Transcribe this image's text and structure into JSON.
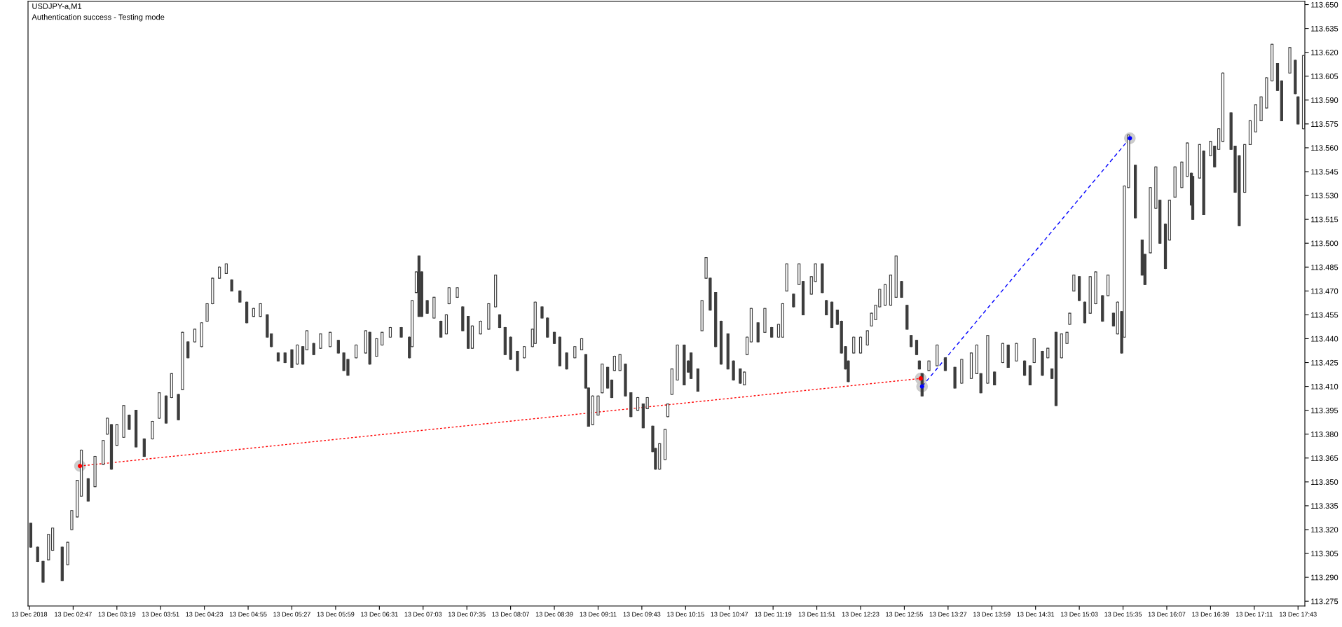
{
  "chart_data": {
    "type": "candlestick",
    "title": "USDJPY-a,M1",
    "annotations": [
      "Authentication success - Testing mode"
    ],
    "color": "#3c3c3c",
    "xlim": [
      "2018-12-13T02:14",
      "2018-12-13T17:48"
    ],
    "ylim": [
      113.272,
      113.652
    ],
    "xticks": [
      {
        "value": "2018-12-13T02:15",
        "label": "13 Dec 2018"
      },
      {
        "value": "2018-12-13T02:47",
        "label": "13 Dec 02:47"
      },
      {
        "value": "2018-12-13T03:19",
        "label": "13 Dec 03:19"
      },
      {
        "value": "2018-12-13T03:51",
        "label": "13 Dec 03:51"
      },
      {
        "value": "2018-12-13T04:23",
        "label": "13 Dec 04:23"
      },
      {
        "value": "2018-12-13T04:55",
        "label": "13 Dec 04:55"
      },
      {
        "value": "2018-12-13T05:27",
        "label": "13 Dec 05:27"
      },
      {
        "value": "2018-12-13T05:59",
        "label": "13 Dec 05:59"
      },
      {
        "value": "2018-12-13T06:31",
        "label": "13 Dec 06:31"
      },
      {
        "value": "2018-12-13T07:03",
        "label": "13 Dec 07:03"
      },
      {
        "value": "2018-12-13T07:35",
        "label": "13 Dec 07:35"
      },
      {
        "value": "2018-12-13T08:07",
        "label": "13 Dec 08:07"
      },
      {
        "value": "2018-12-13T08:39",
        "label": "13 Dec 08:39"
      },
      {
        "value": "2018-12-13T09:11",
        "label": "13 Dec 09:11"
      },
      {
        "value": "2018-12-13T09:43",
        "label": "13 Dec 09:43"
      },
      {
        "value": "2018-12-13T10:15",
        "label": "13 Dec 10:15"
      },
      {
        "value": "2018-12-13T10:47",
        "label": "13 Dec 10:47"
      },
      {
        "value": "2018-12-13T11:19",
        "label": "13 Dec 11:19"
      },
      {
        "value": "2018-12-13T11:51",
        "label": "13 Dec 11:51"
      },
      {
        "value": "2018-12-13T12:23",
        "label": "13 Dec 12:23"
      },
      {
        "value": "2018-12-13T12:55",
        "label": "13 Dec 12:55"
      },
      {
        "value": "2018-12-13T13:27",
        "label": "13 Dec 13:27"
      },
      {
        "value": "2018-12-13T13:59",
        "label": "13 Dec 13:59"
      },
      {
        "value": "2018-12-13T14:31",
        "label": "13 Dec 14:31"
      },
      {
        "value": "2018-12-13T15:03",
        "label": "13 Dec 15:03"
      },
      {
        "value": "2018-12-13T15:35",
        "label": "13 Dec 15:35"
      },
      {
        "value": "2018-12-13T16:07",
        "label": "13 Dec 16:07"
      },
      {
        "value": "2018-12-13T16:39",
        "label": "13 Dec 16:39"
      },
      {
        "value": "2018-12-13T17:11",
        "label": "13 Dec 17:11"
      },
      {
        "value": "2018-12-13T17:43",
        "label": "13 Dec 17:43"
      }
    ],
    "yticks": [
      113.275,
      {
        "value": 113.29,
        "label": "113.290"
      },
      113.305,
      {
        "value": 113.32,
        "label": "113.320"
      },
      113.335,
      {
        "value": 113.35,
        "label": "113.350"
      },
      113.365,
      {
        "value": 113.38,
        "label": "113.380"
      },
      113.395,
      {
        "value": 113.41,
        "label": "113.410"
      },
      113.425,
      {
        "value": 113.44,
        "label": "113.440"
      },
      113.455,
      {
        "value": 113.47,
        "label": "113.470"
      },
      113.485,
      {
        "value": 113.5,
        "label": "113.500"
      },
      113.515,
      {
        "value": 113.53,
        "label": "113.530"
      },
      113.545,
      {
        "value": 113.56,
        "label": "113.560"
      },
      113.575,
      {
        "value": 113.59,
        "label": "113.590"
      },
      113.605,
      {
        "value": 113.62,
        "label": "113.620"
      },
      113.635,
      {
        "value": 113.65,
        "label": "113.650"
      }
    ],
    "x": [
      "2018-12-13T02:16",
      "2018-12-13T02:21",
      "2018-12-13T02:25",
      "2018-12-13T02:29",
      "2018-12-13T02:32",
      "2018-12-13T02:39",
      "2018-12-13T02:43",
      "2018-12-13T02:46",
      "2018-12-13T02:50",
      "2018-12-13T02:53",
      "2018-12-13T02:58",
      "2018-12-13T03:03",
      "2018-12-13T03:09",
      "2018-12-13T03:12",
      "2018-12-13T03:15",
      "2018-12-13T03:19",
      "2018-12-13T03:24",
      "2018-12-13T03:28",
      "2018-12-13T03:33",
      "2018-12-13T03:39",
      "2018-12-13T03:45",
      "2018-12-13T03:50",
      "2018-12-13T03:55",
      "2018-12-13T03:59",
      "2018-12-13T04:04",
      "2018-12-13T04:07",
      "2018-12-13T04:11",
      "2018-12-13T04:16",
      "2018-12-13T04:21",
      "2018-12-13T04:25",
      "2018-12-13T04:29",
      "2018-12-13T04:34",
      "2018-12-13T04:39",
      "2018-12-13T04:43",
      "2018-12-13T04:49",
      "2018-12-13T04:54",
      "2018-12-13T04:59",
      "2018-12-13T05:04",
      "2018-12-13T05:09",
      "2018-12-13T05:12",
      "2018-12-13T05:17",
      "2018-12-13T05:22",
      "2018-12-13T05:27",
      "2018-12-13T05:31",
      "2018-12-13T05:35",
      "2018-12-13T05:38",
      "2018-12-13T05:43",
      "2018-12-13T05:48",
      "2018-12-13T05:55",
      "2018-12-13T06:01",
      "2018-12-13T06:05",
      "2018-12-13T06:08",
      "2018-12-13T06:14",
      "2018-12-13T06:21",
      "2018-12-13T06:24",
      "2018-12-13T06:29",
      "2018-12-13T06:33",
      "2018-12-13T06:39",
      "2018-12-13T06:47",
      "2018-12-13T06:53",
      "2018-12-13T06:55",
      "2018-12-13T06:58",
      "2018-12-13T07:00",
      "2018-12-13T07:02",
      "2018-12-13T07:06",
      "2018-12-13T07:11",
      "2018-12-13T07:16",
      "2018-12-13T07:20",
      "2018-12-13T07:22",
      "2018-12-13T07:28",
      "2018-12-13T07:32",
      "2018-12-13T07:36",
      "2018-12-13T07:39",
      "2018-12-13T07:45",
      "2018-12-13T07:51",
      "2018-12-13T07:56",
      "2018-12-13T07:59",
      "2018-12-13T08:03",
      "2018-12-13T08:07",
      "2018-12-13T08:12",
      "2018-12-13T08:17",
      "2018-12-13T08:23",
      "2018-12-13T08:25",
      "2018-12-13T08:30",
      "2018-12-13T08:34",
      "2018-12-13T08:39",
      "2018-12-13T08:43",
      "2018-12-13T08:48",
      "2018-12-13T08:54",
      "2018-12-13T08:59",
      "2018-12-13T09:02",
      "2018-12-13T09:04",
      "2018-12-13T09:07",
      "2018-12-13T09:11",
      "2018-12-13T09:14",
      "2018-12-13T09:18",
      "2018-12-13T09:21",
      "2018-12-13T09:23",
      "2018-12-13T09:27",
      "2018-12-13T09:31",
      "2018-12-13T09:35",
      "2018-12-13T09:40",
      "2018-12-13T09:44",
      "2018-12-13T09:47",
      "2018-12-13T09:51",
      "2018-12-13T09:53",
      "2018-12-13T09:56",
      "2018-12-13T10:00",
      "2018-12-13T10:02",
      "2018-12-13T10:05",
      "2018-12-13T10:09",
      "2018-12-13T10:14",
      "2018-12-13T10:17",
      "2018-12-13T10:19",
      "2018-12-13T10:24",
      "2018-12-13T10:27",
      "2018-12-13T10:30",
      "2018-12-13T10:33",
      "2018-12-13T10:37",
      "2018-12-13T10:41",
      "2018-12-13T10:46",
      "2018-12-13T10:50",
      "2018-12-13T10:55",
      "2018-12-13T10:58",
      "2018-12-13T11:00",
      "2018-12-13T11:03",
      "2018-12-13T11:08",
      "2018-12-13T11:13",
      "2018-12-13T11:18",
      "2018-12-13T11:23",
      "2018-12-13T11:26",
      "2018-12-13T11:29",
      "2018-12-13T11:34",
      "2018-12-13T11:38",
      "2018-12-13T11:41",
      "2018-12-13T11:47",
      "2018-12-13T11:50",
      "2018-12-13T11:55",
      "2018-12-13T11:58",
      "2018-12-13T12:02",
      "2018-12-13T12:06",
      "2018-12-13T12:09",
      "2018-12-13T12:12",
      "2018-12-13T12:14",
      "2018-12-13T12:18",
      "2018-12-13T12:23",
      "2018-12-13T12:28",
      "2018-12-13T12:31",
      "2018-12-13T12:34",
      "2018-12-13T12:37",
      "2018-12-13T12:41",
      "2018-12-13T12:45",
      "2018-12-13T12:49",
      "2018-12-13T12:53",
      "2018-12-13T12:57",
      "2018-12-13T13:00",
      "2018-12-13T13:04",
      "2018-12-13T13:06",
      "2018-12-13T13:08",
      "2018-12-13T13:13",
      "2018-12-13T13:19",
      "2018-12-13T13:25",
      "2018-12-13T13:32",
      "2018-12-13T13:37",
      "2018-12-13T13:44",
      "2018-12-13T13:48",
      "2018-12-13T13:51",
      "2018-12-13T13:56",
      "2018-12-13T14:01",
      "2018-12-13T14:07",
      "2018-12-13T14:11",
      "2018-12-13T14:17",
      "2018-12-13T14:23",
      "2018-12-13T14:27",
      "2018-12-13T14:30",
      "2018-12-13T14:36",
      "2018-12-13T14:40",
      "2018-12-13T14:43",
      "2018-12-13T14:46",
      "2018-12-13T14:50",
      "2018-12-13T14:54",
      "2018-12-13T14:56",
      "2018-12-13T14:59",
      "2018-12-13T15:03",
      "2018-12-13T15:07",
      "2018-12-13T15:11",
      "2018-12-13T15:15",
      "2018-12-13T15:20",
      "2018-12-13T15:24",
      "2018-12-13T15:28",
      "2018-12-13T15:31",
      "2018-12-13T15:34",
      "2018-12-13T15:36",
      "2018-12-13T15:39",
      "2018-12-13T15:44",
      "2018-12-13T15:49",
      "2018-12-13T15:51",
      "2018-12-13T15:55",
      "2018-12-13T15:59",
      "2018-12-13T16:02",
      "2018-12-13T16:06",
      "2018-12-13T16:09",
      "2018-12-13T16:13",
      "2018-12-13T16:18",
      "2018-12-13T16:22",
      "2018-12-13T16:25",
      "2018-12-13T16:26",
      "2018-12-13T16:31",
      "2018-12-13T16:34",
      "2018-12-13T16:39",
      "2018-12-13T16:42",
      "2018-12-13T16:45",
      "2018-12-13T16:48",
      "2018-12-13T16:54",
      "2018-12-13T16:57",
      "2018-12-13T17:00",
      "2018-12-13T17:04",
      "2018-12-13T17:08",
      "2018-12-13T17:12",
      "2018-12-13T17:16",
      "2018-12-13T17:20",
      "2018-12-13T17:24",
      "2018-12-13T17:28",
      "2018-12-13T17:31",
      "2018-12-13T17:37",
      "2018-12-13T17:41",
      "2018-12-13T17:43",
      "2018-12-13T17:47"
    ],
    "ohlc": [
      [
        113.324,
        113.324,
        113.309,
        113.309
      ],
      [
        113.309,
        113.309,
        113.3,
        113.3
      ],
      [
        113.3,
        113.3,
        113.287,
        113.287
      ],
      [
        113.301,
        113.317,
        113.301,
        113.317
      ],
      [
        113.307,
        113.321,
        113.307,
        113.321
      ],
      [
        113.309,
        113.309,
        113.288,
        113.288
      ],
      [
        113.298,
        113.312,
        113.298,
        113.312
      ],
      [
        113.32,
        113.332,
        113.32,
        113.332
      ],
      [
        113.328,
        113.351,
        113.328,
        113.351
      ],
      [
        113.341,
        113.37,
        113.341,
        113.37
      ],
      [
        113.352,
        113.352,
        113.338,
        113.338
      ],
      [
        113.347,
        113.366,
        113.347,
        113.366
      ],
      [
        113.361,
        113.376,
        113.361,
        113.376
      ],
      [
        113.38,
        113.39,
        113.38,
        113.39
      ],
      [
        113.386,
        113.386,
        113.358,
        113.358
      ],
      [
        113.373,
        113.386,
        113.373,
        113.386
      ],
      [
        113.378,
        113.398,
        113.378,
        113.398
      ],
      [
        113.392,
        113.392,
        113.383,
        113.383
      ],
      [
        113.395,
        113.395,
        113.372,
        113.372
      ],
      [
        113.377,
        113.377,
        113.366,
        113.366
      ],
      [
        113.377,
        113.388,
        113.377,
        113.388
      ],
      [
        113.39,
        113.406,
        113.39,
        113.406
      ],
      [
        113.404,
        113.404,
        113.387,
        113.387
      ],
      [
        113.403,
        113.418,
        113.403,
        113.418
      ],
      [
        113.405,
        113.405,
        113.389,
        113.389
      ],
      [
        113.408,
        113.444,
        113.408,
        113.444
      ],
      [
        113.438,
        113.438,
        113.428,
        113.428
      ],
      [
        113.438,
        113.446,
        113.438,
        113.446
      ],
      [
        113.435,
        113.45,
        113.435,
        113.45
      ],
      [
        113.451,
        113.462,
        113.451,
        113.462
      ],
      [
        113.462,
        113.478,
        113.462,
        113.478
      ],
      [
        113.478,
        113.485,
        113.478,
        113.485
      ],
      [
        113.481,
        113.487,
        113.481,
        113.487
      ],
      [
        113.477,
        113.477,
        113.47,
        113.47
      ],
      [
        113.47,
        113.47,
        113.463,
        113.463
      ],
      [
        113.463,
        113.463,
        113.45,
        113.45
      ],
      [
        113.454,
        113.459,
        113.454,
        113.459
      ],
      [
        113.454,
        113.462,
        113.454,
        113.462
      ],
      [
        113.455,
        113.455,
        113.441,
        113.441
      ],
      [
        113.443,
        113.443,
        113.435,
        113.435
      ],
      [
        113.431,
        113.431,
        113.426,
        113.426
      ],
      [
        113.431,
        113.431,
        113.425,
        113.425
      ],
      [
        113.433,
        113.433,
        113.422,
        113.422
      ],
      [
        113.424,
        113.436,
        113.424,
        113.436
      ],
      [
        113.435,
        113.435,
        113.424,
        113.424
      ],
      [
        113.433,
        113.445,
        113.433,
        113.445
      ],
      [
        113.437,
        113.437,
        113.43,
        113.43
      ],
      [
        113.434,
        113.443,
        113.434,
        113.443
      ],
      [
        113.435,
        113.444,
        113.435,
        113.444
      ],
      [
        113.439,
        113.439,
        113.431,
        113.431
      ],
      [
        113.431,
        113.431,
        113.42,
        113.42
      ],
      [
        113.427,
        113.427,
        113.417,
        113.417
      ],
      [
        113.428,
        113.436,
        113.428,
        113.436
      ],
      [
        113.431,
        113.445,
        113.431,
        113.445
      ],
      [
        113.444,
        113.444,
        113.424,
        113.424
      ],
      [
        113.429,
        113.44,
        113.429,
        113.44
      ],
      [
        113.436,
        113.444,
        113.436,
        113.444
      ],
      [
        113.441,
        113.447,
        113.441,
        113.447
      ],
      [
        113.447,
        113.447,
        113.441,
        113.441
      ],
      [
        113.441,
        113.441,
        113.428,
        113.428
      ],
      [
        113.435,
        113.464,
        113.435,
        113.464
      ],
      [
        113.469,
        113.482,
        113.469,
        113.482
      ],
      [
        113.492,
        113.492,
        113.454,
        113.454
      ],
      [
        113.482,
        113.482,
        113.454,
        113.454
      ],
      [
        113.464,
        113.464,
        113.456,
        113.456
      ],
      [
        113.453,
        113.466,
        113.453,
        113.466
      ],
      [
        113.451,
        113.451,
        113.441,
        113.441
      ],
      [
        113.443,
        113.455,
        113.443,
        113.455
      ],
      [
        113.462,
        113.472,
        113.462,
        113.472
      ],
      [
        113.466,
        113.472,
        113.466,
        113.472
      ],
      [
        113.46,
        113.46,
        113.445,
        113.445
      ],
      [
        113.454,
        113.454,
        113.434,
        113.434
      ],
      [
        113.434,
        113.448,
        113.434,
        113.448
      ],
      [
        113.443,
        113.451,
        113.443,
        113.451
      ],
      [
        113.446,
        113.462,
        113.446,
        113.462
      ],
      [
        113.46,
        113.48,
        113.46,
        113.48
      ],
      [
        113.455,
        113.455,
        113.447,
        113.447
      ],
      [
        113.447,
        113.447,
        113.43,
        113.43
      ],
      [
        113.441,
        113.441,
        113.427,
        113.427
      ],
      [
        113.432,
        113.432,
        113.42,
        113.42
      ],
      [
        113.428,
        113.435,
        113.428,
        113.435
      ],
      [
        113.435,
        113.446,
        113.435,
        113.446
      ],
      [
        113.437,
        113.463,
        113.437,
        113.463
      ],
      [
        113.46,
        113.46,
        113.453,
        113.453
      ],
      [
        113.453,
        113.453,
        113.441,
        113.441
      ],
      [
        113.444,
        113.444,
        113.437,
        113.437
      ],
      [
        113.441,
        113.441,
        113.423,
        113.423
      ],
      [
        113.431,
        113.431,
        113.421,
        113.421
      ],
      [
        113.428,
        113.435,
        113.428,
        113.435
      ],
      [
        113.433,
        113.44,
        113.433,
        113.44
      ],
      [
        113.43,
        113.43,
        113.409,
        113.409
      ],
      [
        113.409,
        113.409,
        113.385,
        113.385
      ],
      [
        113.386,
        113.404,
        113.386,
        113.404
      ],
      [
        113.392,
        113.404,
        113.392,
        113.404
      ],
      [
        113.406,
        113.424,
        113.406,
        113.424
      ],
      [
        113.422,
        113.422,
        113.409,
        113.409
      ],
      [
        113.414,
        113.414,
        113.403,
        113.403
      ],
      [
        113.42,
        113.429,
        113.42,
        113.429
      ],
      [
        113.42,
        113.43,
        113.42,
        113.43
      ],
      [
        113.424,
        113.424,
        113.404,
        113.404
      ],
      [
        113.406,
        113.406,
        113.391,
        113.391
      ],
      [
        113.395,
        113.403,
        113.395,
        113.403
      ],
      [
        113.399,
        113.399,
        113.384,
        113.384
      ],
      [
        113.396,
        113.403,
        113.396,
        113.403
      ],
      [
        113.385,
        113.385,
        113.369,
        113.369
      ],
      [
        113.371,
        113.371,
        113.358,
        113.358
      ],
      [
        113.358,
        113.374,
        113.358,
        113.374
      ],
      [
        113.364,
        113.383,
        113.364,
        113.383
      ],
      [
        113.391,
        113.399,
        113.391,
        113.399
      ],
      [
        113.405,
        113.421,
        113.405,
        113.421
      ],
      [
        113.414,
        113.436,
        113.414,
        113.436
      ],
      [
        113.436,
        113.436,
        113.411,
        113.411
      ],
      [
        113.426,
        113.426,
        113.419,
        113.419
      ],
      [
        113.431,
        113.431,
        113.415,
        113.415
      ],
      [
        113.421,
        113.421,
        113.407,
        113.407
      ],
      [
        113.445,
        113.464,
        113.445,
        113.464
      ],
      [
        113.478,
        113.491,
        113.478,
        113.491
      ],
      [
        113.478,
        113.478,
        113.458,
        113.458
      ],
      [
        113.469,
        113.469,
        113.435,
        113.435
      ],
      [
        113.451,
        113.451,
        113.424,
        113.424
      ],
      [
        113.443,
        113.443,
        113.421,
        113.421
      ],
      [
        113.426,
        113.426,
        113.414,
        113.414
      ],
      [
        113.421,
        113.421,
        113.412,
        113.412
      ],
      [
        113.411,
        113.419,
        113.411,
        113.419
      ],
      [
        113.43,
        113.441,
        113.43,
        113.441
      ],
      [
        113.438,
        113.459,
        113.438,
        113.459
      ],
      [
        113.45,
        113.45,
        113.438,
        113.438
      ],
      [
        113.444,
        113.459,
        113.444,
        113.459
      ],
      [
        113.447,
        113.447,
        113.441,
        113.441
      ],
      [
        113.441,
        113.449,
        113.441,
        113.449
      ],
      [
        113.441,
        113.462,
        113.441,
        113.462
      ],
      [
        113.47,
        113.487,
        113.47,
        113.487
      ],
      [
        113.468,
        113.468,
        113.46,
        113.46
      ],
      [
        113.474,
        113.487,
        113.474,
        113.487
      ],
      [
        113.476,
        113.476,
        113.455,
        113.455
      ],
      [
        113.468,
        113.479,
        113.468,
        113.479
      ],
      [
        113.476,
        113.487,
        113.476,
        113.487
      ],
      [
        113.487,
        113.487,
        113.469,
        113.469
      ],
      [
        113.464,
        113.464,
        113.455,
        113.455
      ],
      [
        113.463,
        113.463,
        113.447,
        113.447
      ],
      [
        113.458,
        113.458,
        113.449,
        113.449
      ],
      [
        113.451,
        113.451,
        113.431,
        113.431
      ],
      [
        113.435,
        113.435,
        113.421,
        113.421
      ],
      [
        113.426,
        113.426,
        113.413,
        113.413
      ],
      [
        113.431,
        113.441,
        113.431,
        113.441
      ],
      [
        113.431,
        113.441,
        113.431,
        113.441
      ],
      [
        113.436,
        113.445,
        113.436,
        113.445
      ],
      [
        113.448,
        113.456,
        113.448,
        113.456
      ],
      [
        113.452,
        113.461,
        113.452,
        113.461
      ],
      [
        113.46,
        113.471,
        113.46,
        113.471
      ],
      [
        113.461,
        113.474,
        113.461,
        113.474
      ],
      [
        113.461,
        113.48,
        113.461,
        113.48
      ],
      [
        113.466,
        113.492,
        113.466,
        113.492
      ],
      [
        113.476,
        113.476,
        113.466,
        113.466
      ],
      [
        113.461,
        113.461,
        113.446,
        113.446
      ],
      [
        113.442,
        113.442,
        113.435,
        113.435
      ],
      [
        113.439,
        113.439,
        113.43,
        113.43
      ],
      [
        113.426,
        113.426,
        113.421,
        113.421
      ],
      [
        113.418,
        113.418,
        113.404,
        113.404
      ],
      [
        113.42,
        113.426,
        113.42,
        113.426
      ],
      [
        113.423,
        113.436,
        113.423,
        113.436
      ],
      [
        113.428,
        113.428,
        113.42,
        113.42
      ],
      [
        113.422,
        113.422,
        113.409,
        113.409
      ],
      [
        113.412,
        113.427,
        113.412,
        113.427
      ],
      [
        113.415,
        113.431,
        113.415,
        113.431
      ],
      [
        113.418,
        113.436,
        113.418,
        113.436
      ],
      [
        113.418,
        113.418,
        113.406,
        113.406
      ],
      [
        113.412,
        113.442,
        113.412,
        113.442
      ],
      [
        113.419,
        113.419,
        113.411,
        113.411
      ],
      [
        113.425,
        113.437,
        113.425,
        113.437
      ],
      [
        113.436,
        113.436,
        113.422,
        113.422
      ],
      [
        113.426,
        113.437,
        113.426,
        113.437
      ],
      [
        113.426,
        113.426,
        113.417,
        113.417
      ],
      [
        113.423,
        113.423,
        113.411,
        113.411
      ],
      [
        113.425,
        113.44,
        113.425,
        113.44
      ],
      [
        113.432,
        113.432,
        113.417,
        113.417
      ],
      [
        113.428,
        113.434,
        113.428,
        113.434
      ],
      [
        113.421,
        113.421,
        113.415,
        113.415
      ],
      [
        113.444,
        113.444,
        113.398,
        113.398
      ],
      [
        113.428,
        113.443,
        113.428,
        113.443
      ],
      [
        113.437,
        113.444,
        113.437,
        113.444
      ],
      [
        113.449,
        113.456,
        113.449,
        113.456
      ],
      [
        113.47,
        113.48,
        113.47,
        113.48
      ],
      [
        113.479,
        113.479,
        113.464,
        113.464
      ],
      [
        113.463,
        113.463,
        113.45,
        113.45
      ],
      [
        113.456,
        113.479,
        113.456,
        113.479
      ],
      [
        113.462,
        113.482,
        113.462,
        113.482
      ],
      [
        113.467,
        113.467,
        113.451,
        113.451
      ],
      [
        113.467,
        113.48,
        113.467,
        113.48
      ],
      [
        113.456,
        113.456,
        113.448,
        113.448
      ],
      [
        113.443,
        113.463,
        113.443,
        113.463
      ],
      [
        113.457,
        113.457,
        113.431,
        113.431
      ],
      [
        113.441,
        113.536,
        113.441,
        113.536
      ],
      [
        113.535,
        113.568,
        113.535,
        113.568
      ],
      [
        113.549,
        113.549,
        113.516,
        113.516
      ],
      [
        113.502,
        113.502,
        113.48,
        113.48
      ],
      [
        113.493,
        113.493,
        113.474,
        113.474
      ],
      [
        113.494,
        113.535,
        113.494,
        113.535
      ],
      [
        113.522,
        113.548,
        113.522,
        113.548
      ],
      [
        113.527,
        113.527,
        113.5,
        113.5
      ],
      [
        113.512,
        113.512,
        113.484,
        113.484
      ],
      [
        113.502,
        113.527,
        113.502,
        113.527
      ],
      [
        113.529,
        113.548,
        113.529,
        113.548
      ],
      [
        113.535,
        113.551,
        113.535,
        113.551
      ],
      [
        113.542,
        113.563,
        113.542,
        113.563
      ],
      [
        113.544,
        113.544,
        113.524,
        113.524
      ],
      [
        113.542,
        113.542,
        113.515,
        113.515
      ],
      [
        113.541,
        113.562,
        113.541,
        113.562
      ],
      [
        113.558,
        113.558,
        113.518,
        113.518
      ],
      [
        113.555,
        113.564,
        113.555,
        113.564
      ],
      [
        113.561,
        113.561,
        113.548,
        113.548
      ],
      [
        113.559,
        113.572,
        113.559,
        113.572
      ],
      [
        113.564,
        113.607,
        113.564,
        113.607
      ],
      [
        113.582,
        113.582,
        113.559,
        113.559
      ],
      [
        113.561,
        113.561,
        113.532,
        113.532
      ],
      [
        113.555,
        113.555,
        113.511,
        113.511
      ],
      [
        113.532,
        113.562,
        113.532,
        113.562
      ],
      [
        113.562,
        113.577,
        113.562,
        113.577
      ],
      [
        113.57,
        113.587,
        113.57,
        113.587
      ],
      [
        113.577,
        113.592,
        113.577,
        113.592
      ],
      [
        113.585,
        113.604,
        113.585,
        113.604
      ],
      [
        113.602,
        113.625,
        113.602,
        113.625
      ],
      [
        113.613,
        113.613,
        113.596,
        113.596
      ],
      [
        113.602,
        113.602,
        113.577,
        113.577
      ],
      [
        113.607,
        113.623,
        113.607,
        113.623
      ],
      [
        113.615,
        113.615,
        113.594,
        113.594
      ],
      [
        113.592,
        113.592,
        113.575,
        113.575
      ],
      [
        113.572,
        113.618,
        113.572,
        113.618
      ]
    ],
    "series": [
      {
        "type": "line",
        "color": "#ff0000",
        "line_style": "dotted",
        "marker": "circle",
        "x": [
          "2018-12-13T02:52",
          "2018-12-13T13:07"
        ],
        "values": [
          113.36,
          113.415
        ]
      },
      {
        "type": "line",
        "color": "#0000ff",
        "line_style": "dashed",
        "marker": "circle",
        "x": [
          "2018-12-13T13:08",
          "2018-12-13T15:40"
        ],
        "values": [
          113.41,
          113.566
        ]
      }
    ]
  }
}
